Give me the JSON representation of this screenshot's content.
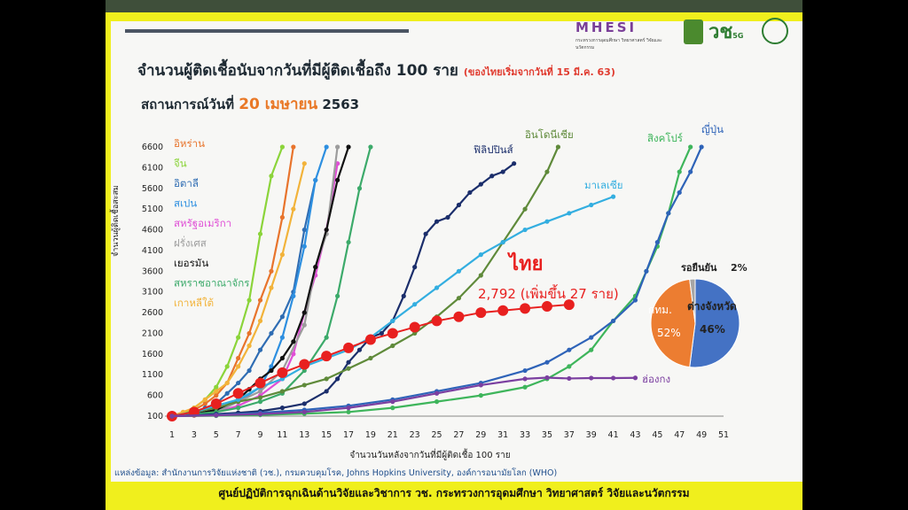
{
  "header": {
    "logo_mhesi": "MHESI",
    "logo_mhesi_sub": "กระทรวงการอุดมศึกษา วิทยาศาสตร์ วิจัยและนวัตกรรม",
    "logo_vor": "วช",
    "logo_sg": "5G"
  },
  "title": "จำนวนผู้ติดเชื้อนับจากวันที่มีผู้ติดเชื้อถึง 100 ราย",
  "title_note": "(ของไทยเริ่มจากวันที่ 15 มี.ค. 63)",
  "subtitle_prefix": "สถานการณ์วันที่",
  "subtitle_date": "20 เมษายน",
  "subtitle_year": "2563",
  "source": "แหล่งข้อมูล: สำนักงานการวิจัยแห่งชาติ (วช.), กรมควบคุมโรค, Johns Hopkins University, องค์การอนามัยโลก (WHO)",
  "footer": "ศูนย์ปฏิบัติการฉุกเฉินด้านวิจัยและวิชาการ   วช.   กระทรวงการอุดมศึกษา วิทยาศาสตร์ วิจัยและนวัตกรรม",
  "chart_data": [
    {
      "type": "line",
      "xlabel": "จำนวนวันหลังจากวันที่มีผู้ติดเชื้อ 100 ราย",
      "ylabel": "จำนวนผู้ติดเชื้อสะสม",
      "xticks": [
        1,
        3,
        5,
        7,
        9,
        11,
        13,
        15,
        17,
        19,
        21,
        23,
        25,
        27,
        29,
        31,
        33,
        35,
        37,
        39,
        41,
        43,
        45,
        47,
        49,
        51
      ],
      "yticks": [
        100,
        600,
        1100,
        1600,
        2100,
        2600,
        3100,
        3600,
        4100,
        4600,
        5100,
        5600,
        6100,
        6600
      ],
      "xlim": [
        1,
        51
      ],
      "ylim": [
        100,
        6600
      ],
      "annotation": {
        "label": "ไทย",
        "value": "2,792 (เพิ่มขึ้น 27 ราย)",
        "color": "#e8201f"
      },
      "series": [
        {
          "name": "อิหร่าน",
          "color": "#e8742c",
          "labeled": true,
          "x": [
            1,
            2,
            3,
            4,
            5,
            6,
            7,
            8,
            9,
            10,
            11,
            12
          ],
          "y": [
            100,
            150,
            250,
            400,
            600,
            900,
            1500,
            2100,
            2900,
            3600,
            4900,
            6600
          ]
        },
        {
          "name": "จีน",
          "color": "#8bd43a",
          "labeled": true,
          "x": [
            1,
            2,
            3,
            4,
            5,
            6,
            7,
            8,
            9,
            10,
            11
          ],
          "y": [
            100,
            180,
            300,
            500,
            800,
            1300,
            2000,
            2900,
            4500,
            5900,
            6600
          ]
        },
        {
          "name": "อิตาลี",
          "color": "#2f6db3",
          "labeled": true,
          "x": [
            1,
            2,
            3,
            4,
            5,
            6,
            7,
            8,
            9,
            10,
            11,
            12,
            13,
            14
          ],
          "y": [
            100,
            150,
            200,
            300,
            400,
            650,
            900,
            1200,
            1700,
            2100,
            2500,
            3100,
            4600,
            5800
          ]
        },
        {
          "name": "สเปน",
          "color": "#2d8fe0",
          "labeled": true,
          "x": [
            1,
            3,
            5,
            7,
            9,
            10,
            11,
            12,
            13,
            14,
            15
          ],
          "y": [
            100,
            150,
            250,
            450,
            800,
            1300,
            2000,
            3000,
            4200,
            5800,
            6600
          ]
        },
        {
          "name": "สหรัฐอเมริกา",
          "color": "#e04fd6",
          "labeled": true,
          "x": [
            1,
            3,
            5,
            7,
            9,
            11,
            12,
            13,
            14,
            15,
            16
          ],
          "y": [
            100,
            130,
            200,
            350,
            600,
            1000,
            1600,
            2600,
            3500,
            4600,
            6200
          ]
        },
        {
          "name": "ฝรั่งเศส",
          "color": "#9c9c9c",
          "labeled": true,
          "x": [
            1,
            3,
            5,
            7,
            9,
            11,
            13,
            14,
            15,
            16
          ],
          "y": [
            100,
            150,
            200,
            450,
            700,
            1200,
            2300,
            3700,
            4500,
            6600
          ]
        },
        {
          "name": "เยอรมัน",
          "color": "#111111",
          "labeled": true,
          "x": [
            1,
            3,
            5,
            7,
            8,
            9,
            10,
            11,
            12,
            13,
            14,
            15,
            16,
            17
          ],
          "y": [
            100,
            150,
            250,
            500,
            750,
            1000,
            1200,
            1500,
            1900,
            2600,
            3700,
            4600,
            5800,
            6600
          ]
        },
        {
          "name": "สหราชอาณาจักร",
          "color": "#3caa6a",
          "labeled": true,
          "x": [
            1,
            3,
            5,
            7,
            9,
            11,
            13,
            15,
            16,
            17,
            18,
            19
          ],
          "y": [
            100,
            150,
            200,
            300,
            450,
            650,
            1200,
            2000,
            3000,
            4300,
            5600,
            6600
          ]
        },
        {
          "name": "เกาหลีใต้",
          "color": "#f2b33a",
          "labeled": true,
          "x": [
            1,
            2,
            3,
            4,
            5,
            6,
            7,
            8,
            9,
            10,
            11,
            12,
            13
          ],
          "y": [
            100,
            200,
            300,
            500,
            700,
            900,
            1300,
            1800,
            2400,
            3200,
            4000,
            5100,
            6200
          ]
        },
        {
          "name": "ฟิลิปปินส์",
          "color": "#1b2e6b",
          "labeled": true,
          "x": [
            1,
            3,
            5,
            7,
            9,
            11,
            13,
            15,
            16,
            17,
            18,
            19,
            20,
            21,
            22,
            23,
            24,
            25,
            26,
            27,
            28,
            29,
            30,
            31,
            32
          ],
          "y": [
            100,
            120,
            150,
            180,
            220,
            300,
            400,
            700,
            1000,
            1400,
            1700,
            2000,
            2100,
            2400,
            3000,
            3700,
            4500,
            4800,
            4900,
            5200,
            5500,
            5700,
            5900,
            6000,
            6200
          ]
        },
        {
          "name": "อินโดนีเซีย",
          "color": "#5f8a3a",
          "labeled": true,
          "x": [
            1,
            3,
            5,
            7,
            9,
            11,
            13,
            15,
            17,
            19,
            21,
            23,
            25,
            27,
            29,
            31,
            33,
            35,
            36
          ],
          "y": [
            100,
            200,
            300,
            450,
            550,
            700,
            850,
            1000,
            1250,
            1500,
            1800,
            2100,
            2500,
            2950,
            3500,
            4300,
            5100,
            6000,
            6600
          ]
        },
        {
          "name": "มาเลเซีย",
          "color": "#33aee0",
          "labeled": true,
          "x": [
            1,
            3,
            5,
            7,
            9,
            11,
            13,
            15,
            17,
            19,
            21,
            23,
            25,
            27,
            29,
            31,
            33,
            35,
            37,
            39,
            41
          ],
          "y": [
            100,
            200,
            350,
            500,
            800,
            1000,
            1300,
            1500,
            1700,
            2000,
            2400,
            2800,
            3200,
            3600,
            4000,
            4300,
            4600,
            4800,
            5000,
            5200,
            5400
          ]
        },
        {
          "name": "ไทย",
          "color": "#e8201f",
          "labeled": false,
          "x": [
            1,
            3,
            5,
            7,
            9,
            11,
            13,
            15,
            17,
            19,
            21,
            23,
            25,
            27,
            29,
            31,
            33,
            35,
            37
          ],
          "y": [
            100,
            200,
            400,
            650,
            900,
            1150,
            1350,
            1550,
            1750,
            1950,
            2100,
            2250,
            2400,
            2500,
            2600,
            2650,
            2700,
            2750,
            2792
          ]
        },
        {
          "name": "สิงคโปร์",
          "color": "#3eb55b",
          "labeled": true,
          "x": [
            1,
            5,
            9,
            13,
            17,
            21,
            25,
            29,
            33,
            35,
            37,
            39,
            41,
            43,
            44,
            45,
            46,
            47,
            48
          ],
          "y": [
            100,
            110,
            130,
            160,
            200,
            300,
            450,
            600,
            800,
            1000,
            1300,
            1700,
            2400,
            3000,
            3600,
            4200,
            5000,
            6000,
            6600
          ]
        },
        {
          "name": "ญี่ปุ่น",
          "color": "#2e63b8",
          "labeled": true,
          "x": [
            1,
            5,
            9,
            13,
            17,
            21,
            25,
            29,
            33,
            35,
            37,
            39,
            41,
            43,
            44,
            45,
            46,
            47,
            48,
            49
          ],
          "y": [
            100,
            130,
            180,
            250,
            350,
            500,
            700,
            900,
            1200,
            1400,
            1700,
            2000,
            2400,
            2900,
            3600,
            4300,
            5000,
            5500,
            6000,
            6600
          ]
        },
        {
          "name": "ฮ่องกง",
          "color": "#7b3fa0",
          "labeled": true,
          "x": [
            1,
            5,
            9,
            13,
            17,
            21,
            25,
            29,
            33,
            35,
            37,
            39,
            41,
            43
          ],
          "y": [
            100,
            120,
            150,
            200,
            300,
            450,
            650,
            850,
            1000,
            1030,
            1010,
            1020,
            1020,
            1025
          ]
        }
      ]
    },
    {
      "type": "pie",
      "labels": [
        "กทม.",
        "ต่างจังหวัด",
        "รอยืนยัน"
      ],
      "values": [
        52,
        46,
        2
      ],
      "display": [
        "52%",
        "46%",
        "2%"
      ],
      "colors": [
        "#4472c4",
        "#ec7d31",
        "#a5a5a5"
      ]
    }
  ]
}
